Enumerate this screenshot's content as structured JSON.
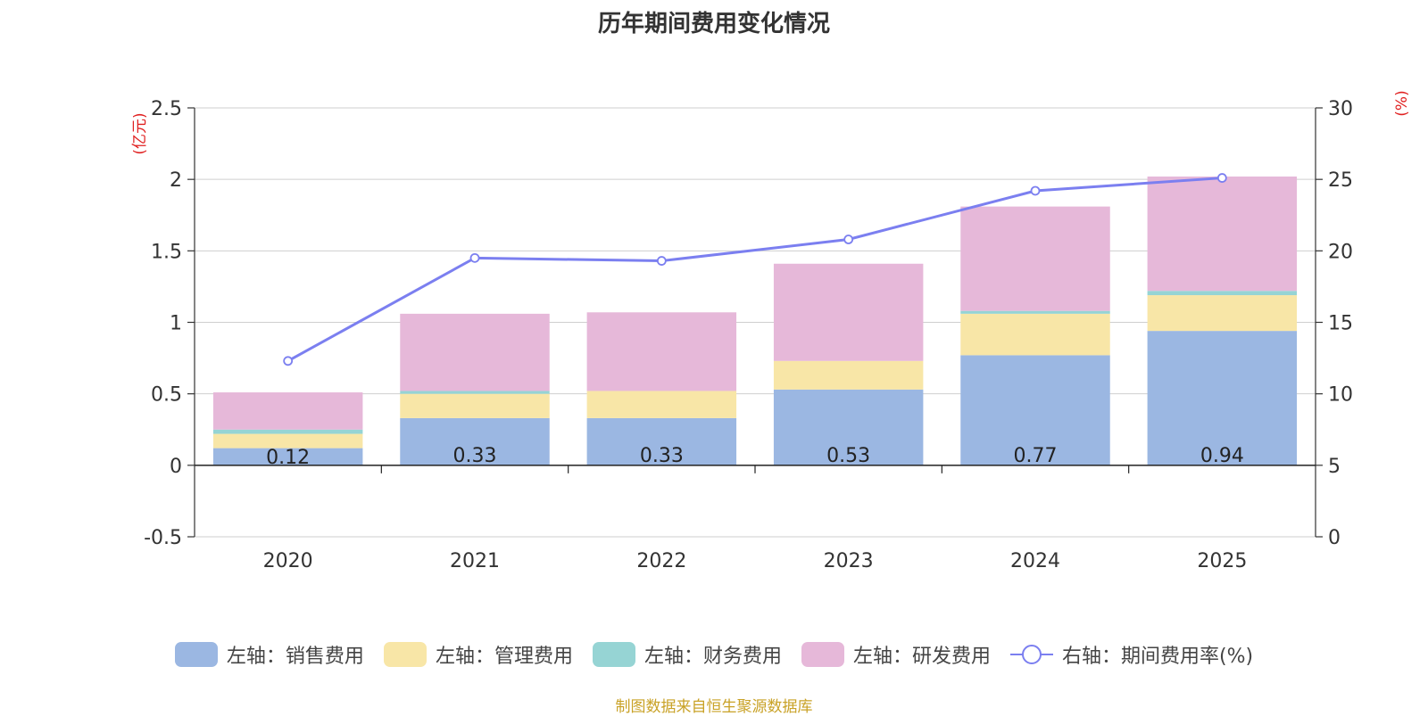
{
  "chart_data": {
    "type": "bar",
    "title": "历年期间费用变化情况",
    "categories": [
      "2020",
      "2021",
      "2022",
      "2023",
      "2024",
      "2025"
    ],
    "left_axis": {
      "unit_label": "(亿元)",
      "ylim": [
        -0.5,
        2.5
      ],
      "ticks": [
        "-0.5",
        "0",
        "0.5",
        "1",
        "1.5",
        "2",
        "2.5"
      ]
    },
    "right_axis": {
      "unit_label": "(%)",
      "ylim": [
        0,
        30
      ],
      "ticks": [
        "0",
        "5",
        "10",
        "15",
        "20",
        "25",
        "30"
      ]
    },
    "series": [
      {
        "name": "左轴：销售费用",
        "type": "bar",
        "axis": "left",
        "color": "#9bb7e2",
        "values": [
          0.12,
          0.33,
          0.33,
          0.53,
          0.77,
          0.94
        ],
        "labels": [
          "0.12",
          "0.33",
          "0.33",
          "0.53",
          "0.77",
          "0.94"
        ]
      },
      {
        "name": "左轴：管理费用",
        "type": "bar",
        "axis": "left",
        "color": "#f8e6a7",
        "values": [
          0.1,
          0.17,
          0.19,
          0.2,
          0.29,
          0.25
        ]
      },
      {
        "name": "左轴：财务费用",
        "type": "bar",
        "axis": "left",
        "color": "#96d4d4",
        "values": [
          0.03,
          0.02,
          0.0,
          0.0,
          0.02,
          0.03
        ]
      },
      {
        "name": "左轴：研发费用",
        "type": "bar",
        "axis": "left",
        "color": "#e6b8d9",
        "values": [
          0.26,
          0.54,
          0.55,
          0.68,
          0.73,
          0.8
        ]
      },
      {
        "name": "右轴：期间费用率(%)",
        "type": "line",
        "axis": "right",
        "color": "#7b7ff0",
        "values": [
          12.3,
          19.5,
          19.3,
          20.8,
          24.2,
          25.1
        ]
      }
    ],
    "grid": true,
    "legend_position": "bottom"
  },
  "footer": {
    "source": "制图数据来自恒生聚源数据库"
  }
}
